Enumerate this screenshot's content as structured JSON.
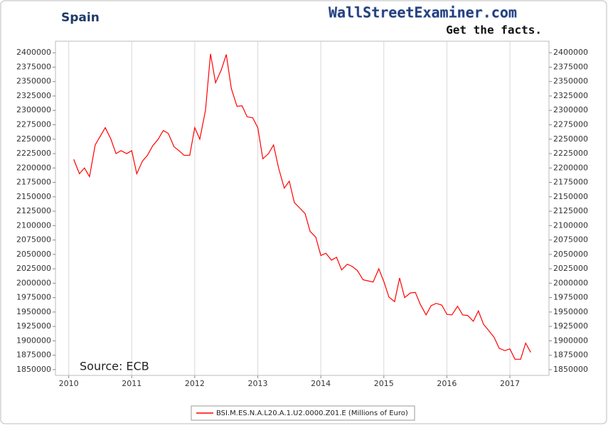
{
  "chart_data": {
    "type": "line",
    "title": "Spain",
    "watermark": "WallStreetExaminer.com",
    "watermark_tagline": "Get the facts.",
    "annotation": "Source: ECB",
    "grid": true,
    "legend": "bottom",
    "xlim": [
      2009.79,
      2017.62
    ],
    "xticks": [
      2010,
      2011,
      2012,
      2013,
      2014,
      2015,
      2016,
      2017
    ],
    "ylim": [
      1840000,
      2420000
    ],
    "yticks": [
      1850000,
      1875000,
      1900000,
      1925000,
      1950000,
      1975000,
      2000000,
      2025000,
      2050000,
      2075000,
      2100000,
      2125000,
      2150000,
      2175000,
      2200000,
      2225000,
      2250000,
      2275000,
      2300000,
      2325000,
      2350000,
      2375000,
      2400000
    ],
    "x": [
      2010.08,
      2010.17,
      2010.25,
      2010.33,
      2010.42,
      2010.5,
      2010.58,
      2010.67,
      2010.75,
      2010.83,
      2010.92,
      2011.0,
      2011.08,
      2011.17,
      2011.25,
      2011.33,
      2011.42,
      2011.5,
      2011.58,
      2011.67,
      2011.75,
      2011.83,
      2011.92,
      2012.0,
      2012.08,
      2012.17,
      2012.25,
      2012.33,
      2012.42,
      2012.5,
      2012.58,
      2012.67,
      2012.75,
      2012.83,
      2012.92,
      2013.0,
      2013.08,
      2013.17,
      2013.25,
      2013.33,
      2013.42,
      2013.5,
      2013.58,
      2013.67,
      2013.75,
      2013.83,
      2013.92,
      2014.0,
      2014.08,
      2014.17,
      2014.25,
      2014.33,
      2014.42,
      2014.5,
      2014.58,
      2014.67,
      2014.75,
      2014.83,
      2014.92,
      2015.0,
      2015.08,
      2015.17,
      2015.25,
      2015.33,
      2015.42,
      2015.5,
      2015.58,
      2015.67,
      2015.75,
      2015.83,
      2015.92,
      2016.0,
      2016.08,
      2016.17,
      2016.25,
      2016.33,
      2016.42,
      2016.5,
      2016.58,
      2016.67,
      2016.75,
      2016.83,
      2016.92,
      2017.0,
      2017.08,
      2017.17,
      2017.25,
      2017.33
    ],
    "series": [
      {
        "name": "BSI.M.ES.N.A.L20.A.1.U2.0000.Z01.E (Millions of Euro)",
        "color": "#ff0000",
        "values": [
          2215000,
          2190000,
          2200000,
          2185000,
          2240000,
          2255000,
          2270000,
          2250000,
          2225000,
          2230000,
          2225000,
          2230000,
          2190000,
          2212000,
          2222000,
          2238000,
          2250000,
          2265000,
          2260000,
          2237000,
          2230000,
          2222000,
          2222000,
          2270000,
          2250000,
          2300000,
          2398000,
          2348000,
          2370000,
          2397000,
          2338000,
          2307000,
          2308000,
          2289000,
          2287000,
          2270000,
          2216000,
          2225000,
          2240000,
          2200000,
          2165000,
          2177000,
          2140000,
          2130000,
          2121000,
          2090000,
          2080000,
          2048000,
          2052000,
          2040000,
          2045000,
          2023000,
          2033000,
          2029000,
          2022000,
          2006000,
          2004000,
          2002000,
          2025000,
          2003000,
          1976000,
          1968000,
          2009000,
          1975000,
          1983000,
          1984000,
          1963000,
          1945000,
          1961000,
          1965000,
          1962000,
          1946000,
          1945000,
          1960000,
          1945000,
          1944000,
          1934000,
          1952000,
          1929000,
          1917000,
          1906000,
          1887000,
          1883000,
          1886000,
          1868000,
          1868000,
          1896000,
          1880000
        ]
      }
    ]
  }
}
